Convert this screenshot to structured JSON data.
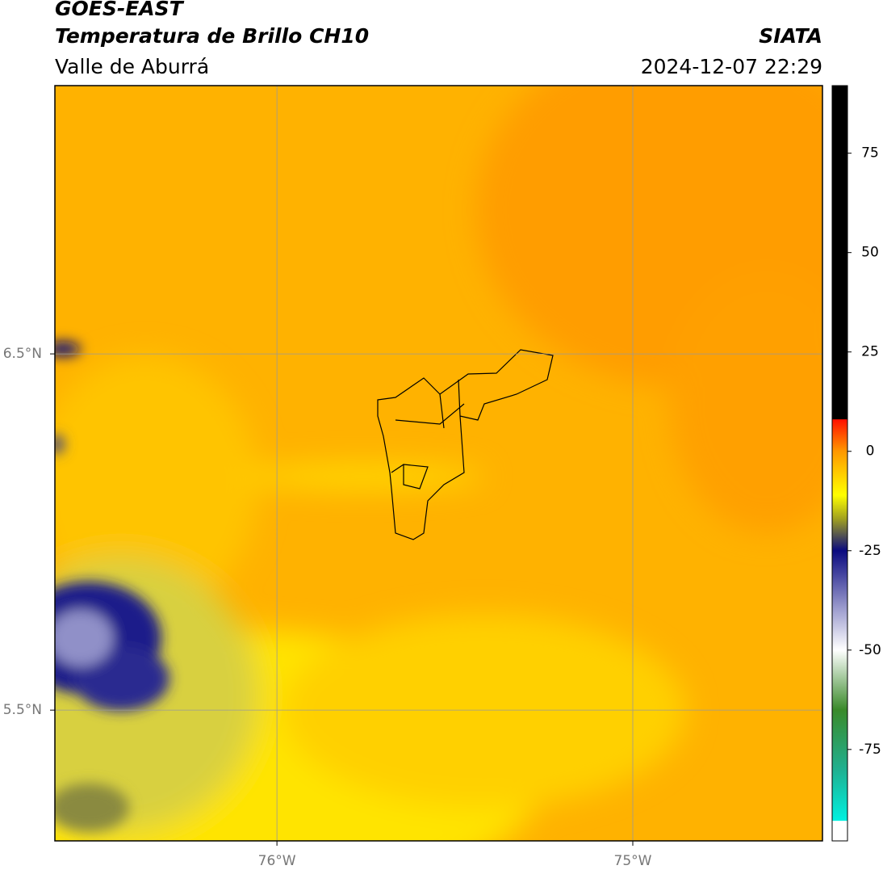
{
  "header": {
    "title": "GOES-EAST",
    "subtitle": "Temperatura de Brillo CH10",
    "region": "Valle de Aburrá",
    "source": "SIATA",
    "datetime": "2024-12-07 22:29"
  },
  "map": {
    "lonlim": [
      -76.624,
      -74.467
    ],
    "latlim": [
      5.133,
      7.253
    ],
    "lonticks": [
      {
        "value": -76,
        "label": "76°W"
      },
      {
        "value": -75,
        "label": "75°W"
      }
    ],
    "latticks": [
      {
        "value": 6.5,
        "label": "6.5°N"
      },
      {
        "value": 5.5,
        "label": "5.5°N"
      }
    ],
    "grid": true
  },
  "colorbar": {
    "lim": [
      -98,
      92
    ],
    "ticks": [
      -75,
      -50,
      -25,
      0,
      25,
      50,
      75
    ],
    "stops": [
      {
        "value": -93,
        "color": "#ffffff"
      },
      {
        "value": -92.9,
        "color": "#00f0e0"
      },
      {
        "value": -80,
        "color": "#20b090"
      },
      {
        "value": -65,
        "color": "#3a8a2a"
      },
      {
        "value": -50,
        "color": "#ffffff"
      },
      {
        "value": -40,
        "color": "#a0a0d0"
      },
      {
        "value": -25,
        "color": "#0a0a80"
      },
      {
        "value": -17,
        "color": "#a0a020"
      },
      {
        "value": -11,
        "color": "#ffff00"
      },
      {
        "value": 0,
        "color": "#ff9800"
      },
      {
        "value": 8,
        "color": "#ff1000"
      },
      {
        "value": 8.1,
        "color": "#000000"
      }
    ]
  }
}
